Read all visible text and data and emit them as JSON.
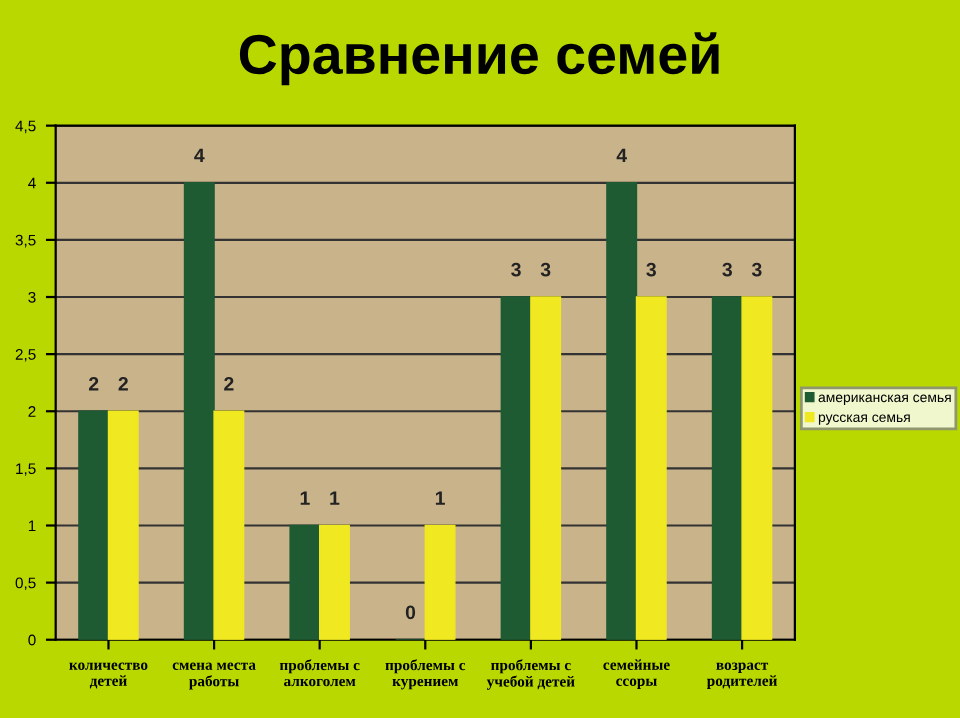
{
  "chart_data": {
    "type": "bar",
    "title": "Сравнение семей",
    "categories": [
      "количество детей",
      "смена места работы",
      "проблемы с алкоголем",
      "проблемы с курением",
      "проблемы с учебой детей",
      "семейные ссоры",
      "возраст родителей"
    ],
    "series": [
      {
        "name": "американская семья",
        "color": "#1e5a32",
        "values": [
          2,
          4,
          1,
          0,
          3,
          4,
          3
        ]
      },
      {
        "name": "русская семья",
        "color": "#f0e820",
        "values": [
          2,
          2,
          1,
          1,
          3,
          3,
          3
        ]
      }
    ],
    "ylim": [
      0,
      4.5
    ],
    "yticks": [
      0,
      {
        "value": 0.5,
        "label": "0,5"
      },
      1,
      {
        "value": 1.5,
        "label": "1,5"
      },
      2,
      {
        "value": 2.5,
        "label": "2,5"
      },
      3,
      {
        "value": 3.5,
        "label": "3,5"
      },
      4,
      {
        "value": 4.5,
        "label": "4,5"
      }
    ],
    "grid": "y",
    "legend": "right",
    "data_labels": true
  }
}
